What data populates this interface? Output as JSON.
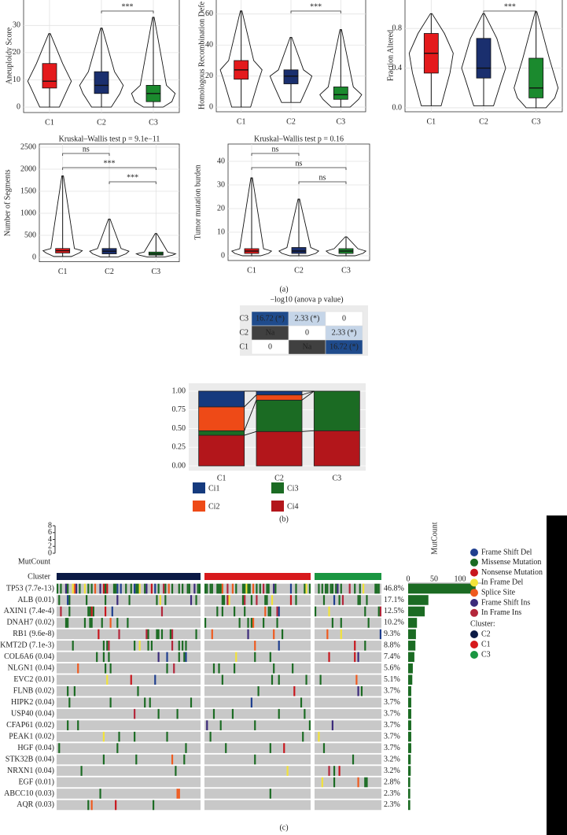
{
  "panels": [
    "(a)",
    "(b)",
    "(c)"
  ],
  "chart_data": [
    {
      "type": "violin",
      "ylabel": "Aneuploidy Score",
      "categories": [
        "C1",
        "C2",
        "C3"
      ],
      "colors": [
        "#e41a1c",
        "#1a2f6e",
        "#1b8a2e"
      ],
      "ylim": [
        -2,
        35
      ],
      "yticks": [
        0,
        10,
        20,
        30
      ],
      "low": [
        0,
        0,
        0
      ],
      "q1": [
        7,
        5,
        2
      ],
      "median": [
        9.5,
        8,
        5
      ],
      "q3": [
        16,
        13,
        8
      ],
      "high": [
        27,
        29,
        33
      ],
      "brackets": [
        {
          "label": "***",
          "between": [
            "C2",
            "C3"
          ]
        }
      ]
    },
    {
      "type": "violin",
      "ylabel": "Homologous Recombination Defe",
      "categories": [
        "C1",
        "C2",
        "C3"
      ],
      "colors": [
        "#e41a1c",
        "#1a2f6e",
        "#1b8a2e"
      ],
      "ylim": [
        -3,
        66
      ],
      "yticks": [
        0,
        20,
        40,
        60
      ],
      "low": [
        0,
        3,
        0
      ],
      "q1": [
        18,
        15,
        5
      ],
      "median": [
        24,
        20,
        8
      ],
      "q3": [
        30,
        24,
        13
      ],
      "high": [
        62,
        45,
        50
      ],
      "brackets": [
        {
          "label": "***",
          "between": [
            "C2",
            "C3"
          ]
        }
      ]
    },
    {
      "type": "violin",
      "ylabel": "Fraction Altered",
      "categories": [
        "C1",
        "C2",
        "C3"
      ],
      "colors": [
        "#e41a1c",
        "#1a2f6e",
        "#1b8a2e"
      ],
      "ylim": [
        -0.04,
        1.02
      ],
      "yticks": [
        {
          "value": 0,
          "label": "0.0"
        },
        0.4,
        0.8
      ],
      "low": [
        0.02,
        0.02,
        0
      ],
      "q1": [
        0.35,
        0.3,
        0.1
      ],
      "median": [
        0.55,
        0.4,
        0.2
      ],
      "q3": [
        0.75,
        0.7,
        0.5
      ],
      "high": [
        0.95,
        0.95,
        0.97
      ],
      "brackets": [
        {
          "label": "***",
          "between": [
            "C2",
            "C3"
          ]
        }
      ]
    },
    {
      "type": "violin",
      "title": "Kruskal–Wallis test p = 9.1e−11",
      "ylabel": "Number of Segments",
      "categories": [
        "C1",
        "C2",
        "C3"
      ],
      "colors": [
        "#e41a1c",
        "#1a2f6e",
        "#1b8a2e"
      ],
      "ylim": [
        -100,
        2500
      ],
      "yticks": [
        0,
        500,
        1000,
        1500,
        2000,
        2500
      ],
      "low": [
        20,
        10,
        10
      ],
      "q1": [
        100,
        80,
        50
      ],
      "median": [
        150,
        140,
        80
      ],
      "q3": [
        200,
        200,
        120
      ],
      "high": [
        1850,
        870,
        540
      ],
      "brackets": [
        {
          "label": "ns",
          "between": [
            "C1",
            "C2"
          ]
        },
        {
          "label": "***",
          "between": [
            "C1",
            "C3"
          ]
        },
        {
          "label": "***",
          "between": [
            "C2",
            "C3"
          ]
        }
      ]
    },
    {
      "type": "violin",
      "title": "Kruskal–Wallis test p = 0.16",
      "ylabel": "Tumor mutation burden",
      "categories": [
        "C1",
        "C2",
        "C3"
      ],
      "colors": [
        "#e41a1c",
        "#1a2f6e",
        "#1b8a2e"
      ],
      "ylim": [
        -2,
        43
      ],
      "yticks": [
        0,
        10,
        20,
        30,
        40
      ],
      "low": [
        0,
        0,
        0
      ],
      "q1": [
        1,
        1,
        1
      ],
      "median": [
        2,
        2,
        2
      ],
      "q3": [
        3,
        3.5,
        3
      ],
      "high": [
        33,
        24,
        8
      ],
      "brackets": [
        {
          "label": "ns",
          "between": [
            "C1",
            "C2"
          ]
        },
        {
          "label": "ns",
          "between": [
            "C1",
            "C3"
          ]
        },
        {
          "label": "ns",
          "between": [
            "C2",
            "C3"
          ]
        }
      ]
    },
    {
      "type": "heatmap",
      "title": "−log10 (anova p value)",
      "rows": [
        "C3",
        "C2",
        "C1"
      ],
      "cells": [
        [
          "16.72 (*)",
          "2.33 (*)",
          "0"
        ],
        [
          "Na",
          "0",
          "2.33 (*)"
        ],
        [
          "0",
          "Na",
          "16.72 (*)"
        ]
      ],
      "cell_colors": [
        [
          "#1f4b8c",
          "#c5d5e8",
          "#ffffff"
        ],
        [
          "#404040",
          "#ffffff",
          "#c5d5e8"
        ],
        [
          "#ffffff",
          "#404040",
          "#1f4b8c"
        ]
      ]
    },
    {
      "type": "stacked_bar",
      "categories": [
        "C1",
        "C2",
        "C3"
      ],
      "ylim": [
        0,
        1
      ],
      "yticks": [
        {
          "value": 0,
          "label": "0.00"
        },
        {
          "value": 0.25,
          "label": "0.25"
        },
        {
          "value": 0.5,
          "label": "0.50"
        },
        {
          "value": 0.75,
          "label": "0.75"
        },
        {
          "value": 1,
          "label": "1.00"
        }
      ],
      "series": [
        {
          "name": "Ci4",
          "color": "#b3161b",
          "values": [
            0.41,
            0.46,
            0.47
          ]
        },
        {
          "name": "Ci3",
          "color": "#1b6b23",
          "values": [
            0.06,
            0.42,
            0.53
          ]
        },
        {
          "name": "Ci2",
          "color": "#ee4a17",
          "values": [
            0.32,
            0.07,
            0
          ]
        },
        {
          "name": "Ci1",
          "color": "#153a7e",
          "values": [
            0.21,
            0.05,
            0
          ]
        }
      ]
    },
    {
      "type": "oncoplot",
      "mutcount_label": "MutCount",
      "mutcount_ylim": [
        0,
        8
      ],
      "mutcount_yticks": [
        0,
        2,
        4,
        6,
        8
      ],
      "cluster_label": "Cluster",
      "genes": [
        "TP53 (7.7e-13)",
        "ALB (0.01)",
        "AXIN1 (7.4e-4)",
        "DNAH7 (0.02)",
        "RB1 (9.6e-8)",
        "KMT2D (7.1e-3)",
        "COL6A6 (0.04)",
        "NLGN1 (0.04)",
        "EVC2 (0.01)",
        "FLNB (0.02)",
        "HIPK2 (0.04)",
        "USP40 (0.04)",
        "CFAP61 (0.02)",
        "PEAK1 (0.02)",
        "HGF (0.04)",
        "STK32B (0.04)",
        "NRXN1 (0.04)",
        "EGF (0.01)",
        "ABCC10 (0.03)",
        "AQR (0.03)"
      ],
      "values": [
        46.8,
        17.1,
        12.5,
        10.2,
        9.3,
        8.8,
        7.4,
        5.6,
        5.1,
        3.7,
        3.7,
        3.7,
        3.7,
        3.7,
        3.7,
        3.2,
        3.2,
        2.8,
        2.3,
        2.3
      ],
      "value_labels": [
        "46.8%",
        "17.1%",
        "12.5%",
        "10.2%",
        "9.3%",
        "8.8%",
        "7.4%",
        "5.6%",
        "5.1%",
        "3.7%",
        "3.7%",
        "3.7%",
        "3.7%",
        "3.7%",
        "3.7%",
        "3.2%",
        "3.2%",
        "2.8%",
        "2.3%",
        "2.3%"
      ],
      "counts_label": "MutCount",
      "counts": [
        130,
        39,
        32,
        17,
        15,
        14,
        12,
        9,
        8,
        6,
        6,
        6,
        6,
        6,
        6,
        5,
        5,
        4,
        4,
        4
      ],
      "counts_color": "#1b6b23",
      "xlim": [
        0,
        100
      ],
      "xticks": [
        0,
        50,
        100
      ],
      "mutation_types": [
        {
          "name": "Frame Shift Del",
          "color": "#1f3f8f"
        },
        {
          "name": "Missense Mutation",
          "color": "#1b6b23"
        },
        {
          "name": "Nonsense Mutation",
          "color": "#c8161d"
        },
        {
          "name": "In Frame Del",
          "color": "#f2e33a"
        },
        {
          "name": "Splice Site",
          "color": "#ef5a1f"
        },
        {
          "name": "Frame Shift Ins",
          "color": "#3b2a7a"
        },
        {
          "name": "In Frame Ins",
          "color": "#b3263a"
        }
      ],
      "cluster_title": "Cluster:",
      "clusters": [
        {
          "name": "C2",
          "color": "#0b1a45"
        },
        {
          "name": "C1",
          "color": "#d7191c"
        },
        {
          "name": "C3",
          "color": "#1a9641"
        }
      ]
    }
  ]
}
